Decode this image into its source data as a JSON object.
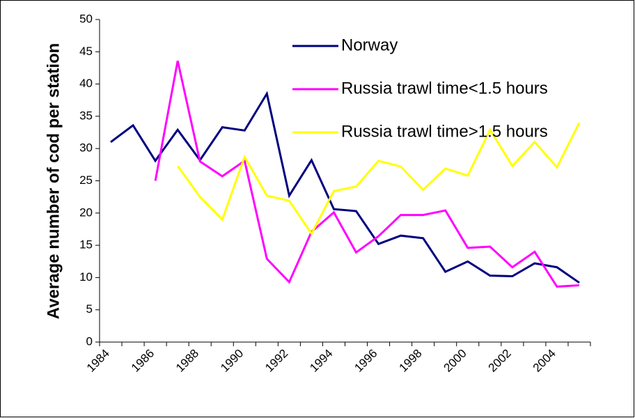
{
  "chart_data": {
    "type": "line",
    "y_label": "Average number of cod  per station",
    "categories": [
      "1984",
      null,
      "1986",
      null,
      "1988",
      null,
      "1990",
      null,
      "1992",
      null,
      "1994",
      null,
      "1996",
      null,
      "1998",
      null,
      "2000",
      null,
      "2002",
      null,
      "2004",
      null
    ],
    "series": [
      {
        "name": "Norway",
        "color": "#000080",
        "values": [
          31,
          33.6,
          28.1,
          32.9,
          28.2,
          33.3,
          32.8,
          38.5,
          22.7,
          28.2,
          20.6,
          20.3,
          15.2,
          16.5,
          16.1,
          10.9,
          12.5,
          10.3,
          10.2,
          12.2,
          11.6,
          9.2
        ]
      },
      {
        "name": "Russia trawl time<1.5 hours",
        "color": "#ff00ff",
        "values": [
          null,
          null,
          25,
          43.6,
          28,
          25.7,
          28.1,
          12.9,
          9.3,
          17.1,
          20.1,
          13.9,
          16.4,
          19.7,
          19.7,
          20.4,
          14.6,
          14.8,
          11.6,
          14,
          8.6,
          8.8
        ]
      },
      {
        "name": "Russia trawl time>1.5 hours",
        "color": "#ffff00",
        "values": [
          null,
          null,
          null,
          27.3,
          22.5,
          19,
          28.7,
          22.7,
          21.9,
          16.8,
          23.4,
          24.1,
          28.1,
          27.2,
          23.6,
          26.9,
          25.8,
          32.9,
          27.3,
          31,
          27.1,
          34
        ]
      }
    ],
    "ylim": [
      0,
      50
    ],
    "yticks": [
      0,
      5,
      10,
      15,
      20,
      25,
      30,
      35,
      40,
      45,
      50
    ],
    "legend": "upper right",
    "grid": false
  }
}
